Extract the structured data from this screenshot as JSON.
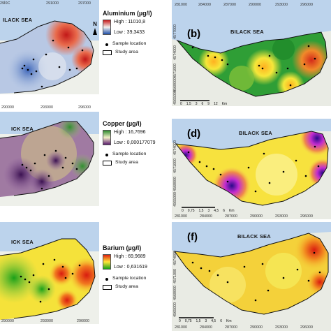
{
  "panels": [
    {
      "id": "a",
      "letter": "",
      "sea_label": "ILACK SEA",
      "ticks_top": [
        "29Ì0C",
        "291000",
        "297000"
      ],
      "ticks_left": [],
      "ticks_bottom": []
    },
    {
      "id": "b",
      "letter": "(b)",
      "sea_label": "BILACK SEA",
      "ticks_top": [
        "281000",
        "284000",
        "287000",
        "290000",
        "293000",
        "296000"
      ],
      "ticks_left": [
        "4577000",
        "4574000",
        "4571000",
        "4568000",
        "4565000"
      ],
      "ticks_bottom": []
    },
    {
      "id": "c",
      "letter": "",
      "sea_label": "ICK SEA",
      "ticks_top": [
        "290000",
        "293000",
        "296000"
      ],
      "ticks_left": [],
      "ticks_bottom": []
    },
    {
      "id": "d",
      "letter": "(d)",
      "sea_label": "BILACK SEA",
      "ticks_top": [],
      "ticks_left": [
        "4574000",
        "4571000",
        "4568000",
        "4565000"
      ],
      "ticks_bottom": [
        "281000",
        "284000",
        "287000",
        "290000",
        "293000",
        "296000"
      ]
    },
    {
      "id": "e",
      "letter": "",
      "sea_label": "ICK SEA",
      "ticks_top": [],
      "ticks_left": [],
      "ticks_bottom": [
        "290000",
        "293000",
        "296000"
      ]
    },
    {
      "id": "f",
      "letter": "(f)",
      "sea_label": "BILACK SEA",
      "ticks_top": [],
      "ticks_left": [
        "4574000",
        "4571000",
        "4568000",
        "4565000"
      ],
      "ticks_bottom": [
        "281000",
        "284000",
        "287000",
        "290000",
        "293000",
        "296000"
      ]
    }
  ],
  "legends": [
    {
      "title": "Aluminium (µg/l)",
      "high": "High : 11010,8",
      "low": "Low : 39,3433",
      "ramp": [
        "#c81d1d",
        "#f2f2ee",
        "#1f4fa8"
      ],
      "sample": "Sample location",
      "study": "Study area"
    },
    {
      "title": "Copper (µg/l)",
      "high": "High : 16,7696",
      "low": "Low : 0,000177079",
      "ramp": [
        "#2e8b2e",
        "#f3f0c9",
        "#5a1a6e"
      ],
      "sample": "Sample location",
      "study": "Study area"
    },
    {
      "title": "Barium (µg/l)",
      "high": "High : 69,9689",
      "low": "Low : 0,631619",
      "ramp": [
        "#e02010",
        "#ffe63a",
        "#18a018"
      ],
      "sample": "Sample location",
      "study": "Study area"
    }
  ],
  "north_label": "N",
  "scale_b": [
    "0",
    "1,5",
    "3",
    "6",
    "9",
    "12",
    "Km"
  ],
  "scale_d": [
    "0",
    "0,75",
    "1,5",
    "3",
    "4,5",
    "6",
    "Km"
  ],
  "scale_f": [
    "0",
    "0,75",
    "1,5",
    "3",
    "4,5",
    "6",
    "Km"
  ]
}
